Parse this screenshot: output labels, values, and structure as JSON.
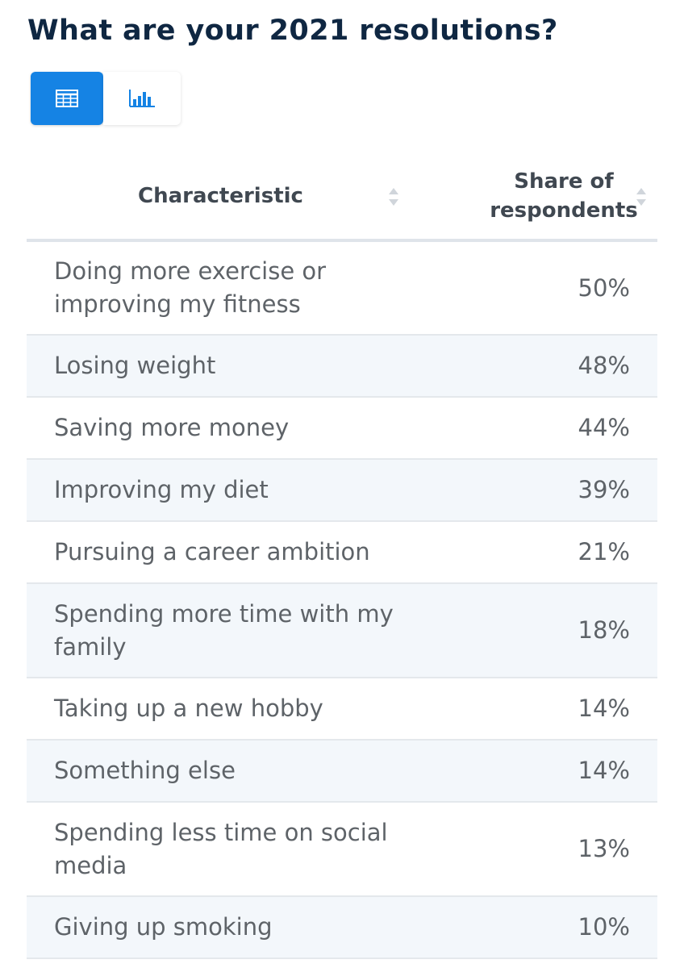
{
  "header": {
    "title": "What are your 2021 resolutions?"
  },
  "view_toggle": {
    "active": "table",
    "table_icon": "table-grid-icon",
    "chart_icon": "bar-chart-icon",
    "active_color": "#1583e4"
  },
  "chart_data": {
    "type": "table",
    "title": "What are your 2021 resolutions?",
    "columns": [
      "Characteristic",
      "Share of respondents"
    ],
    "rows": [
      {
        "label": "Doing more exercise or improving my fitness",
        "value": "50%"
      },
      {
        "label": "Losing weight",
        "value": "48%"
      },
      {
        "label": "Saving more money",
        "value": "44%"
      },
      {
        "label": "Improving my diet",
        "value": "39%"
      },
      {
        "label": "Pursuing a career ambition",
        "value": "21%"
      },
      {
        "label": "Spending more time with my family",
        "value": "18%"
      },
      {
        "label": "Taking up a new hobby",
        "value": "14%"
      },
      {
        "label": "Something else",
        "value": "14%"
      },
      {
        "label": "Spending less time on social media",
        "value": "13%"
      },
      {
        "label": "Giving up smoking",
        "value": "10%"
      }
    ]
  }
}
